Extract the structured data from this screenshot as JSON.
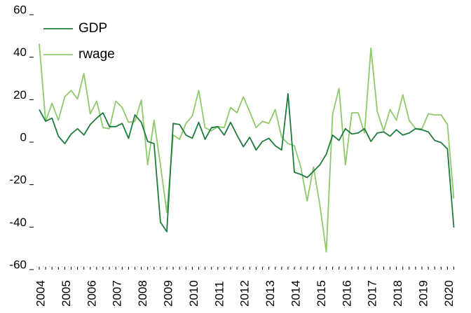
{
  "chart_data": {
    "type": "line",
    "categories": [
      "2004",
      null,
      null,
      null,
      "2005",
      null,
      null,
      null,
      "2006",
      null,
      null,
      null,
      "2007",
      null,
      null,
      null,
      "2008",
      null,
      null,
      null,
      "2009",
      null,
      null,
      null,
      "2010",
      null,
      null,
      null,
      "2011",
      null,
      null,
      null,
      "2012",
      null,
      null,
      null,
      "2013",
      null,
      null,
      null,
      "2014",
      null,
      null,
      null,
      "2015",
      null,
      null,
      null,
      "2016",
      null,
      null,
      null,
      "2017",
      null,
      null,
      null,
      "2018",
      null,
      null,
      null,
      "2019",
      null,
      null,
      null,
      "2020",
      null
    ],
    "series": [
      {
        "name": "GDP",
        "color": "#1e7b3e",
        "values": [
          14,
          8.5,
          10,
          1.5,
          -2,
          2.5,
          5,
          2,
          7,
          10,
          12.5,
          6,
          6,
          7.5,
          0.5,
          11.5,
          8,
          -1,
          -2,
          -39,
          -43.5,
          7.5,
          7,
          2,
          0.5,
          8,
          0,
          5.5,
          6,
          2,
          8,
          2,
          -3.5,
          1,
          -5,
          -1,
          0.5,
          -3,
          -5,
          21.5,
          -15.5,
          -16.5,
          -18,
          -15,
          -12,
          -7,
          2,
          -0.5,
          5,
          2.5,
          3,
          5,
          -1,
          3,
          3.5,
          1.5,
          4.5,
          2,
          3,
          5,
          4.5,
          3.5,
          -0.5,
          -1.5,
          -4.5,
          -41.5
        ]
      },
      {
        "name": "rwage",
        "color": "#8dc96b",
        "values": [
          45,
          8.5,
          17,
          9,
          20,
          23,
          19,
          31,
          12,
          18,
          5.5,
          5,
          18,
          15,
          8,
          8.5,
          18.5,
          -12,
          9,
          -12,
          -34.5,
          2,
          0,
          7.5,
          11,
          23,
          5.5,
          4,
          6,
          5.5,
          15,
          12.5,
          20,
          13,
          5.5,
          8.5,
          7.5,
          14,
          1,
          -2,
          -3,
          -13,
          -29,
          -13,
          -31,
          -53,
          12,
          24,
          -12,
          12.5,
          12.5,
          3,
          43,
          13,
          4,
          14,
          9,
          21,
          9,
          5,
          5,
          12,
          11.5,
          11.5,
          7,
          -28
        ]
      }
    ],
    "ylim": [
      -60,
      60
    ],
    "yticks": [
      -60,
      -40,
      -20,
      0,
      20,
      40,
      60
    ],
    "legend": "upper-left"
  }
}
